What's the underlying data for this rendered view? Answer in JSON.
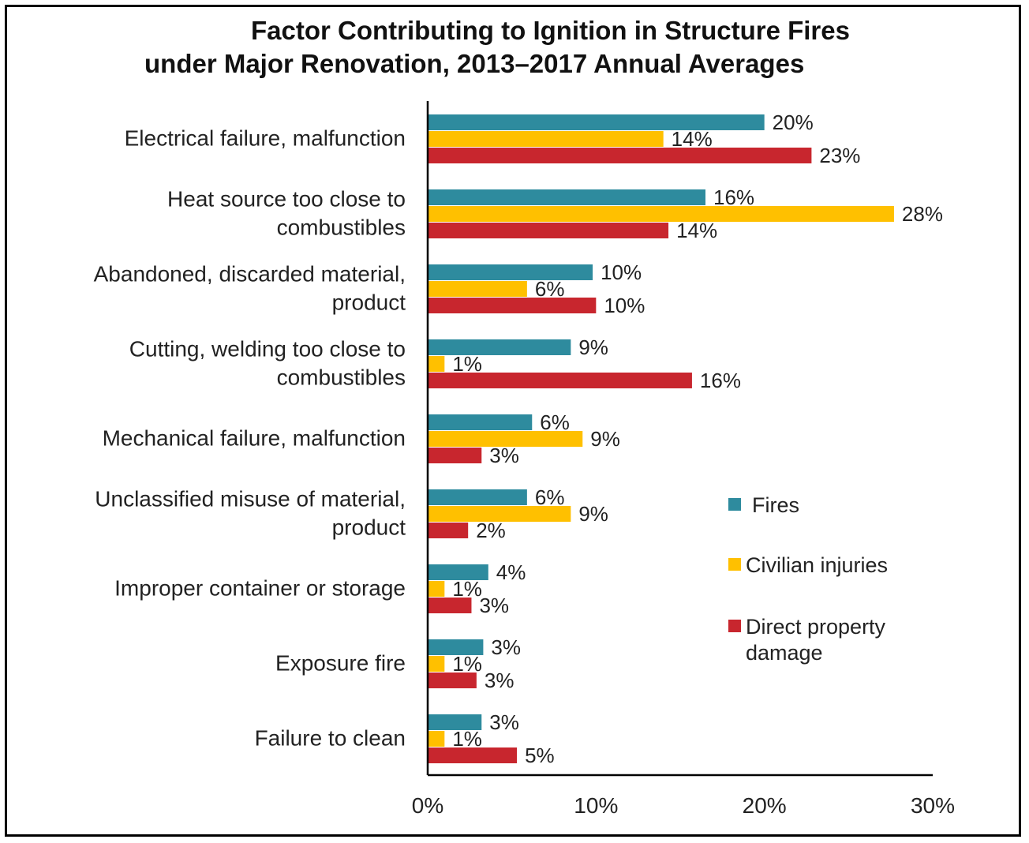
{
  "colors": {
    "fires": "#2e8b9e",
    "civilian_injuries": "#ffc000",
    "direct_property_damage": "#c8262e",
    "axis": "#000000",
    "text": "#222222"
  },
  "chart_data": {
    "type": "bar",
    "orientation": "horizontal",
    "title": "Factor Contributing to Ignition in Structure Fires under Major Renovation, 2013–2017 Annual Averages",
    "title_lines": [
      "Factor Contributing to Ignition in Structure Fires",
      "under Major Renovation, 2013–2017 Annual Averages"
    ],
    "xlabel": "",
    "ylabel": "",
    "xlim": [
      0,
      30
    ],
    "xticks": [
      0,
      10,
      20,
      30
    ],
    "xtick_labels": [
      "0%",
      "10%",
      "20%",
      "30%"
    ],
    "grid": false,
    "legend_position": "right",
    "categories": [
      "Electrical failure, malfunction",
      "Heat source too close to combustibles",
      "Abandoned, discarded material, product",
      "Cutting, welding too close to combustibles",
      "Mechanical failure, malfunction",
      "Unclassified misuse of material, product",
      "Improper container or storage",
      "Exposure fire",
      "Failure to clean"
    ],
    "category_label_lines": [
      [
        "Electrical failure, malfunction"
      ],
      [
        "Heat source too close to",
        "combustibles"
      ],
      [
        "Abandoned, discarded material,",
        "product"
      ],
      [
        "Cutting, welding too close to",
        "combustibles"
      ],
      [
        "Mechanical failure, malfunction"
      ],
      [
        "Unclassified misuse of material,",
        "product"
      ],
      [
        "Improper container or storage"
      ],
      [
        "Exposure fire"
      ],
      [
        "Failure to clean"
      ]
    ],
    "series": [
      {
        "name": "Fires",
        "color_key": "fires",
        "values": [
          20,
          16.5,
          9.8,
          8.5,
          6.2,
          5.9,
          3.6,
          3.3,
          3.2
        ],
        "labels": [
          "20%",
          "16%",
          "10%",
          "9%",
          "6%",
          "6%",
          "4%",
          "3%",
          "3%"
        ]
      },
      {
        "name": "Civilian injuries",
        "color_key": "civilian_injuries",
        "values": [
          14,
          27.7,
          5.9,
          1.0,
          9.2,
          8.5,
          1.0,
          1.0,
          1.0
        ],
        "labels": [
          "14%",
          "28%",
          "6%",
          "1%",
          "9%",
          "9%",
          "1%",
          "1%",
          "1%"
        ]
      },
      {
        "name": "Direct property damage",
        "color_key": "direct_property_damage",
        "values": [
          22.8,
          14.3,
          10.0,
          15.7,
          3.2,
          2.4,
          2.6,
          2.9,
          5.3
        ],
        "labels": [
          "23%",
          "14%",
          "10%",
          "16%",
          "3%",
          "2%",
          "3%",
          "3%",
          "5%"
        ]
      }
    ],
    "legend": [
      {
        "label_lines": [
          "Fires"
        ],
        "color_key": "fires"
      },
      {
        "label_lines": [
          "Civilian injuries"
        ],
        "color_key": "civilian_injuries"
      },
      {
        "label_lines": [
          "Direct property",
          "damage"
        ],
        "color_key": "direct_property_damage"
      }
    ]
  }
}
